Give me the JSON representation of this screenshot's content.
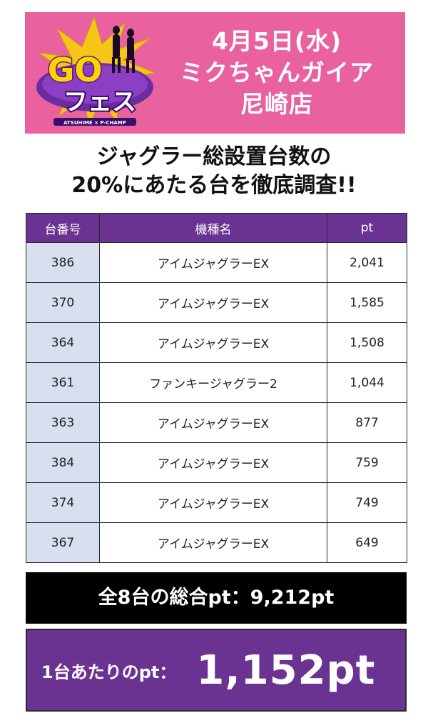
{
  "header": {
    "date": "4月5日(水)",
    "store_line1": "ミクちゃんガイア",
    "store_line2": "尼崎店",
    "logo": {
      "main": "GO",
      "sub": "フェス",
      "tagline": "ATSUHIME × P-CHAMP"
    }
  },
  "headline": {
    "line1": "ジャグラー総設置台数の",
    "line2": "20%にあたる台を徹底調査!!"
  },
  "table": {
    "headers": [
      "台番号",
      "機種名",
      "pt"
    ],
    "rows": [
      [
        "386",
        "アイムジャグラーEX",
        "2,041"
      ],
      [
        "370",
        "アイムジャグラーEX",
        "1,585"
      ],
      [
        "364",
        "アイムジャグラーEX",
        "1,508"
      ],
      [
        "361",
        "ファンキージャグラー2",
        "1,044"
      ],
      [
        "363",
        "アイムジャグラーEX",
        "877"
      ],
      [
        "384",
        "アイムジャグラーEX",
        "759"
      ],
      [
        "374",
        "アイムジャグラーEX",
        "749"
      ],
      [
        "367",
        "アイムジャグラーEX",
        "649"
      ]
    ]
  },
  "summary": {
    "total_text": "全8台の総合pt：9,212pt",
    "per_label": "1台あたりのpt：",
    "per_value": "1,152pt"
  },
  "colors": {
    "header_pink": "#e9629f",
    "purple": "#6a3291",
    "number_cell": "#d8dfef"
  }
}
